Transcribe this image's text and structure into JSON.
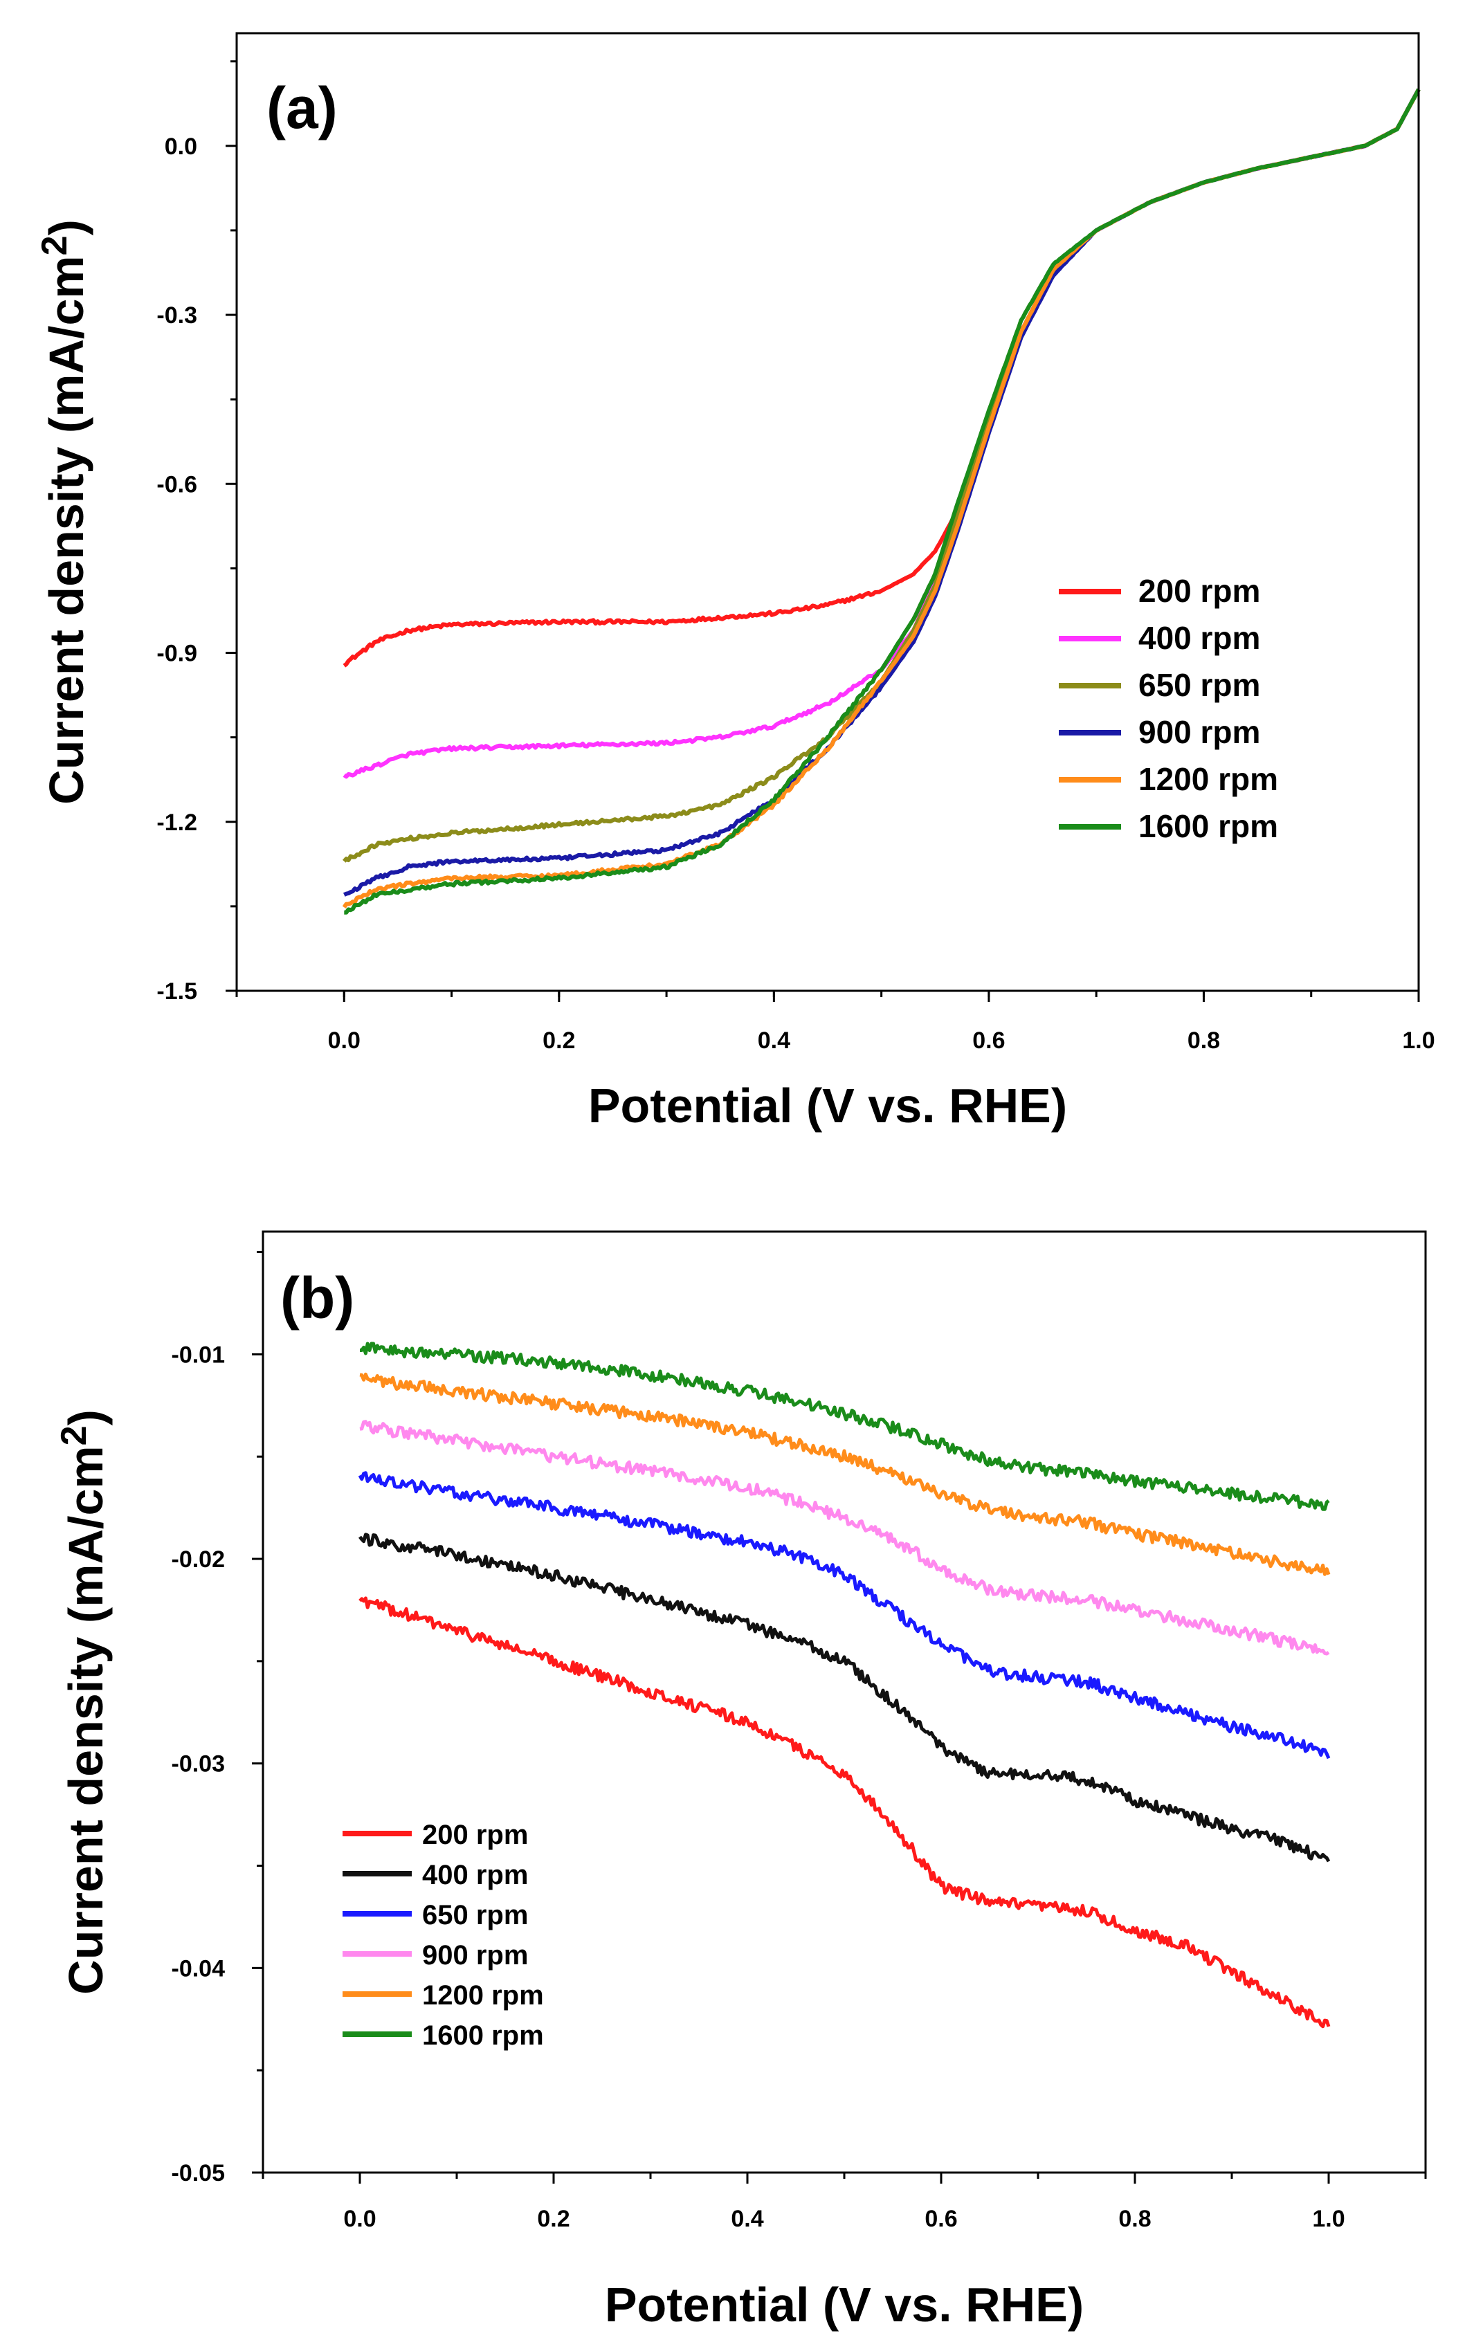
{
  "colors": {
    "axis": "#000000",
    "background": "#ffffff"
  },
  "chart_data": [
    {
      "type": "line",
      "panel_label": "(a)",
      "xlabel": "Potential (V vs. RHE)",
      "ylabel_main": "Current density (mA/cm",
      "ylabel_sup": "2",
      "ylabel_close": ")",
      "xlim": [
        -0.1,
        1.0
      ],
      "ylim": [
        -1.5,
        0.2
      ],
      "xticks": [
        0.0,
        0.2,
        0.4,
        0.6,
        0.8,
        1.0
      ],
      "xtick_labels": [
        "0.0",
        "0.2",
        "0.4",
        "0.6",
        "0.8",
        "1.0"
      ],
      "yticks": [
        0.0,
        -0.3,
        -0.6,
        -0.9,
        -1.2,
        -1.5
      ],
      "ytick_labels": [
        "0.0",
        "-0.3",
        "-0.6",
        "-0.9",
        "-1.2",
        "-1.5"
      ],
      "legend": "right",
      "noise": 0.003,
      "series": [
        {
          "name": "200 rpm",
          "color": "#ff1a1a",
          "x": [
            0.0,
            0.03,
            0.06,
            0.1,
            0.2,
            0.3,
            0.4,
            0.45,
            0.5,
            0.53,
            0.55,
            0.57,
            0.6,
            0.63,
            0.66,
            0.7,
            0.75,
            0.8,
            0.85,
            0.9,
            0.95,
            0.98,
            1.0
          ],
          "y": [
            -0.92,
            -0.88,
            -0.86,
            -0.85,
            -0.845,
            -0.845,
            -0.83,
            -0.815,
            -0.79,
            -0.76,
            -0.72,
            -0.65,
            -0.5,
            -0.33,
            -0.22,
            -0.15,
            -0.1,
            -0.065,
            -0.04,
            -0.02,
            0.0,
            0.03,
            0.1
          ]
        },
        {
          "name": "400 rpm",
          "color": "#ff33ff",
          "x": [
            0.0,
            0.03,
            0.06,
            0.1,
            0.2,
            0.3,
            0.35,
            0.4,
            0.45,
            0.5,
            0.53,
            0.55,
            0.57,
            0.6,
            0.63,
            0.66,
            0.7,
            0.75,
            0.8,
            0.85,
            0.9,
            0.95,
            0.98,
            1.0
          ],
          "y": [
            -1.12,
            -1.1,
            -1.08,
            -1.07,
            -1.065,
            -1.06,
            -1.05,
            -1.03,
            -0.99,
            -0.93,
            -0.86,
            -0.77,
            -0.66,
            -0.49,
            -0.33,
            -0.22,
            -0.15,
            -0.1,
            -0.065,
            -0.04,
            -0.02,
            0.0,
            0.03,
            0.1
          ]
        },
        {
          "name": "650 rpm",
          "color": "#8c8c1a",
          "x": [
            0.0,
            0.03,
            0.06,
            0.1,
            0.2,
            0.3,
            0.35,
            0.4,
            0.45,
            0.5,
            0.53,
            0.55,
            0.57,
            0.6,
            0.63,
            0.66,
            0.7,
            0.75,
            0.8,
            0.85,
            0.9,
            0.95,
            0.98,
            1.0
          ],
          "y": [
            -1.27,
            -1.24,
            -1.23,
            -1.22,
            -1.205,
            -1.19,
            -1.17,
            -1.12,
            -1.05,
            -0.95,
            -0.86,
            -0.78,
            -0.66,
            -0.49,
            -0.33,
            -0.22,
            -0.15,
            -0.1,
            -0.065,
            -0.04,
            -0.02,
            0.0,
            0.03,
            0.1
          ]
        },
        {
          "name": "900 rpm",
          "color": "#1a1aa6",
          "x": [
            0.0,
            0.03,
            0.06,
            0.1,
            0.2,
            0.3,
            0.35,
            0.4,
            0.45,
            0.5,
            0.53,
            0.55,
            0.57,
            0.6,
            0.63,
            0.66,
            0.7,
            0.75,
            0.8,
            0.85,
            0.9,
            0.95,
            0.98,
            1.0
          ],
          "y": [
            -1.33,
            -1.3,
            -1.28,
            -1.27,
            -1.265,
            -1.25,
            -1.22,
            -1.16,
            -1.07,
            -0.96,
            -0.88,
            -0.8,
            -0.69,
            -0.51,
            -0.34,
            -0.23,
            -0.15,
            -0.1,
            -0.065,
            -0.04,
            -0.02,
            0.0,
            0.03,
            0.1
          ]
        },
        {
          "name": "1200 rpm",
          "color": "#ff8c1a",
          "x": [
            0.0,
            0.03,
            0.06,
            0.1,
            0.2,
            0.3,
            0.35,
            0.4,
            0.45,
            0.5,
            0.53,
            0.55,
            0.57,
            0.6,
            0.63,
            0.66,
            0.7,
            0.75,
            0.8,
            0.85,
            0.9,
            0.95,
            0.98,
            1.0
          ],
          "y": [
            -1.35,
            -1.32,
            -1.31,
            -1.3,
            -1.295,
            -1.275,
            -1.24,
            -1.17,
            -1.07,
            -0.95,
            -0.87,
            -0.79,
            -0.68,
            -0.5,
            -0.33,
            -0.22,
            -0.15,
            -0.1,
            -0.065,
            -0.04,
            -0.02,
            0.0,
            0.03,
            0.1
          ]
        },
        {
          "name": "1600 rpm",
          "color": "#1a8c1a",
          "x": [
            0.0,
            0.03,
            0.06,
            0.1,
            0.2,
            0.3,
            0.35,
            0.4,
            0.45,
            0.5,
            0.53,
            0.55,
            0.57,
            0.6,
            0.63,
            0.66,
            0.7,
            0.75,
            0.8,
            0.85,
            0.9,
            0.95,
            0.98,
            1.0
          ],
          "y": [
            -1.36,
            -1.33,
            -1.32,
            -1.31,
            -1.3,
            -1.28,
            -1.24,
            -1.16,
            -1.05,
            -0.93,
            -0.84,
            -0.76,
            -0.64,
            -0.47,
            -0.31,
            -0.21,
            -0.15,
            -0.1,
            -0.065,
            -0.04,
            -0.02,
            0.0,
            0.03,
            0.1
          ]
        }
      ]
    },
    {
      "type": "line",
      "panel_label": "(b)",
      "xlabel": "Potential (V vs. RHE)",
      "ylabel_main": "Current density (mA/cm",
      "ylabel_sup": "2",
      "ylabel_close": ")",
      "xlim": [
        -0.1,
        1.1
      ],
      "ylim": [
        -0.05,
        -0.004
      ],
      "xticks": [
        0.0,
        0.2,
        0.4,
        0.6,
        0.8,
        1.0
      ],
      "xtick_labels": [
        "0.0",
        "0.2",
        "0.4",
        "0.6",
        "0.8",
        "1.0"
      ],
      "yticks": [
        -0.01,
        -0.02,
        -0.03,
        -0.04,
        -0.05
      ],
      "ytick_labels": [
        "-0.01",
        "-0.02",
        "-0.03",
        "-0.04",
        "-0.05"
      ],
      "legend": "lower-left",
      "noise": 0.00028,
      "series": [
        {
          "name": "200 rpm",
          "color": "#ff1a1a",
          "x": [
            0.0,
            0.1,
            0.2,
            0.3,
            0.4,
            0.45,
            0.5,
            0.55,
            0.6,
            0.65,
            0.7,
            0.75,
            0.8,
            0.85,
            0.9,
            0.95,
            1.0
          ],
          "y": [
            -0.022,
            -0.0235,
            -0.025,
            -0.0265,
            -0.028,
            -0.0292,
            -0.0305,
            -0.033,
            -0.036,
            -0.0368,
            -0.037,
            -0.0372,
            -0.0382,
            -0.0388,
            -0.0402,
            -0.0415,
            -0.0428
          ]
        },
        {
          "name": "400 rpm",
          "color": "#111111",
          "x": [
            0.0,
            0.1,
            0.2,
            0.3,
            0.4,
            0.45,
            0.5,
            0.55,
            0.6,
            0.65,
            0.7,
            0.75,
            0.8,
            0.85,
            0.9,
            0.95,
            1.0
          ],
          "y": [
            -0.019,
            -0.0198,
            -0.0208,
            -0.022,
            -0.0232,
            -0.024,
            -0.025,
            -0.027,
            -0.0292,
            -0.0305,
            -0.0305,
            -0.0308,
            -0.0318,
            -0.0325,
            -0.0332,
            -0.0338,
            -0.0347
          ]
        },
        {
          "name": "650 rpm",
          "color": "#1a1aff",
          "x": [
            0.0,
            0.1,
            0.2,
            0.3,
            0.4,
            0.45,
            0.5,
            0.55,
            0.6,
            0.65,
            0.7,
            0.75,
            0.8,
            0.85,
            0.9,
            0.95,
            1.0
          ],
          "y": [
            -0.016,
            -0.0168,
            -0.0175,
            -0.0183,
            -0.0192,
            -0.0198,
            -0.0208,
            -0.0225,
            -0.0242,
            -0.0255,
            -0.0258,
            -0.026,
            -0.0268,
            -0.0275,
            -0.0282,
            -0.0288,
            -0.0295
          ]
        },
        {
          "name": "900 rpm",
          "color": "#ff88ee",
          "x": [
            0.0,
            0.1,
            0.2,
            0.3,
            0.4,
            0.45,
            0.5,
            0.55,
            0.6,
            0.65,
            0.7,
            0.75,
            0.8,
            0.85,
            0.9,
            0.95,
            1.0
          ],
          "y": [
            -0.0135,
            -0.0142,
            -0.015,
            -0.0157,
            -0.0165,
            -0.0172,
            -0.018,
            -0.019,
            -0.0205,
            -0.0215,
            -0.0218,
            -0.022,
            -0.0225,
            -0.023,
            -0.0235,
            -0.024,
            -0.0245
          ]
        },
        {
          "name": "1200 rpm",
          "color": "#ff8c1a",
          "x": [
            0.0,
            0.1,
            0.2,
            0.3,
            0.4,
            0.45,
            0.5,
            0.55,
            0.6,
            0.65,
            0.7,
            0.75,
            0.8,
            0.85,
            0.9,
            0.95,
            1.0
          ],
          "y": [
            -0.0112,
            -0.0118,
            -0.0124,
            -0.013,
            -0.0138,
            -0.0144,
            -0.015,
            -0.0158,
            -0.0168,
            -0.0176,
            -0.018,
            -0.0182,
            -0.0188,
            -0.0192,
            -0.0197,
            -0.0202,
            -0.0206
          ]
        },
        {
          "name": "1600 rpm",
          "color": "#1a8c1a",
          "x": [
            0.0,
            0.1,
            0.2,
            0.3,
            0.4,
            0.45,
            0.5,
            0.55,
            0.6,
            0.65,
            0.7,
            0.75,
            0.8,
            0.85,
            0.9,
            0.95,
            1.0
          ],
          "y": [
            -0.0097,
            -0.01,
            -0.0104,
            -0.011,
            -0.0118,
            -0.0123,
            -0.0129,
            -0.0136,
            -0.0144,
            -0.0152,
            -0.0156,
            -0.0158,
            -0.0162,
            -0.0165,
            -0.0168,
            -0.0171,
            -0.0174
          ]
        }
      ]
    }
  ]
}
